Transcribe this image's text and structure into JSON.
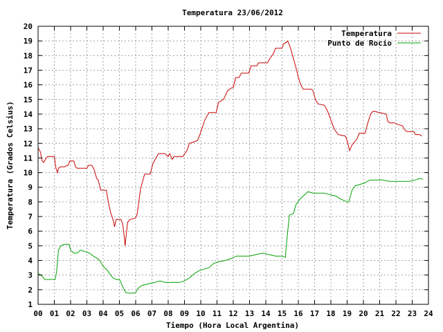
{
  "chart_data": {
    "type": "line",
    "title": "Temperatura 23/06/2012",
    "xlabel": "Tiempo (Hora Local Argentina)",
    "ylabel": "Temperatura (Grados Celsius)",
    "xlim": [
      0,
      24
    ],
    "ylim": [
      1,
      20
    ],
    "x_ticks": [
      "00",
      "01",
      "02",
      "03",
      "04",
      "05",
      "06",
      "07",
      "08",
      "09",
      "10",
      "11",
      "12",
      "13",
      "14",
      "15",
      "16",
      "17",
      "18",
      "19",
      "20",
      "21",
      "22",
      "23",
      "24"
    ],
    "y_ticks": [
      1,
      2,
      3,
      4,
      5,
      6,
      7,
      8,
      9,
      10,
      11,
      12,
      13,
      14,
      15,
      16,
      17,
      18,
      19,
      20
    ],
    "grid": true,
    "legend_position": "top-right",
    "series": [
      {
        "name": "Temperatura",
        "color": "#cc0000",
        "points": [
          [
            0.0,
            11.7
          ],
          [
            0.15,
            11.4
          ],
          [
            0.25,
            10.8
          ],
          [
            0.35,
            10.7
          ],
          [
            0.5,
            11.0
          ],
          [
            0.6,
            11.1
          ],
          [
            0.8,
            11.1
          ],
          [
            1.0,
            11.1
          ],
          [
            1.1,
            10.3
          ],
          [
            1.2,
            10.0
          ],
          [
            1.25,
            10.3
          ],
          [
            1.4,
            10.4
          ],
          [
            1.6,
            10.4
          ],
          [
            1.85,
            10.5
          ],
          [
            1.95,
            10.8
          ],
          [
            2.2,
            10.8
          ],
          [
            2.3,
            10.4
          ],
          [
            2.4,
            10.3
          ],
          [
            2.7,
            10.3
          ],
          [
            3.0,
            10.3
          ],
          [
            3.1,
            10.5
          ],
          [
            3.3,
            10.5
          ],
          [
            3.45,
            10.2
          ],
          [
            3.6,
            9.6
          ],
          [
            3.7,
            9.5
          ],
          [
            3.85,
            8.8
          ],
          [
            4.1,
            8.8
          ],
          [
            4.2,
            8.8
          ],
          [
            4.3,
            8.1
          ],
          [
            4.45,
            7.3
          ],
          [
            4.55,
            7.0
          ],
          [
            4.65,
            6.6
          ],
          [
            4.7,
            6.3
          ],
          [
            4.8,
            6.8
          ],
          [
            5.1,
            6.8
          ],
          [
            5.2,
            6.5
          ],
          [
            5.3,
            5.6
          ],
          [
            5.35,
            5.0
          ],
          [
            5.5,
            6.6
          ],
          [
            5.65,
            6.8
          ],
          [
            6.0,
            6.9
          ],
          [
            6.1,
            7.2
          ],
          [
            6.3,
            8.9
          ],
          [
            6.45,
            9.5
          ],
          [
            6.55,
            9.9
          ],
          [
            6.9,
            9.9
          ],
          [
            7.05,
            10.6
          ],
          [
            7.25,
            11.0
          ],
          [
            7.4,
            11.3
          ],
          [
            7.8,
            11.3
          ],
          [
            8.0,
            11.1
          ],
          [
            8.1,
            11.3
          ],
          [
            8.25,
            10.9
          ],
          [
            8.35,
            11.1
          ],
          [
            8.9,
            11.1
          ],
          [
            9.15,
            11.5
          ],
          [
            9.3,
            12.0
          ],
          [
            9.6,
            12.1
          ],
          [
            9.8,
            12.2
          ],
          [
            9.95,
            12.6
          ],
          [
            10.25,
            13.6
          ],
          [
            10.5,
            14.1
          ],
          [
            10.95,
            14.1
          ],
          [
            11.1,
            14.8
          ],
          [
            11.4,
            15.0
          ],
          [
            11.65,
            15.6
          ],
          [
            11.9,
            15.8
          ],
          [
            12.0,
            15.8
          ],
          [
            12.15,
            16.5
          ],
          [
            12.35,
            16.5
          ],
          [
            12.5,
            16.8
          ],
          [
            12.95,
            16.8
          ],
          [
            13.1,
            17.3
          ],
          [
            13.45,
            17.3
          ],
          [
            13.55,
            17.5
          ],
          [
            14.1,
            17.5
          ],
          [
            14.25,
            17.8
          ],
          [
            14.45,
            18.1
          ],
          [
            14.6,
            18.5
          ],
          [
            15.0,
            18.5
          ],
          [
            15.1,
            18.8
          ],
          [
            15.25,
            18.9
          ],
          [
            15.35,
            19.0
          ],
          [
            15.45,
            18.7
          ],
          [
            15.55,
            18.4
          ],
          [
            15.75,
            17.6
          ],
          [
            15.9,
            17.0
          ],
          [
            16.0,
            16.5
          ],
          [
            16.15,
            16.0
          ],
          [
            16.3,
            15.7
          ],
          [
            16.8,
            15.7
          ],
          [
            16.9,
            15.6
          ],
          [
            17.05,
            15.0
          ],
          [
            17.2,
            14.7
          ],
          [
            17.6,
            14.6
          ],
          [
            17.8,
            14.2
          ],
          [
            18.0,
            13.6
          ],
          [
            18.2,
            13.0
          ],
          [
            18.45,
            12.6
          ],
          [
            18.9,
            12.5
          ],
          [
            19.05,
            12.0
          ],
          [
            19.15,
            11.5
          ],
          [
            19.3,
            11.9
          ],
          [
            19.6,
            12.3
          ],
          [
            19.75,
            12.7
          ],
          [
            20.1,
            12.7
          ],
          [
            20.3,
            13.5
          ],
          [
            20.45,
            14.0
          ],
          [
            20.6,
            14.2
          ],
          [
            21.0,
            14.1
          ],
          [
            21.4,
            14.0
          ],
          [
            21.5,
            13.5
          ],
          [
            21.6,
            13.4
          ],
          [
            21.9,
            13.4
          ],
          [
            22.1,
            13.3
          ],
          [
            22.4,
            13.2
          ],
          [
            22.55,
            12.9
          ],
          [
            22.7,
            12.8
          ],
          [
            23.1,
            12.8
          ],
          [
            23.2,
            12.6
          ],
          [
            23.45,
            12.6
          ],
          [
            23.6,
            12.5
          ]
        ]
      },
      {
        "name": "Punto de Rocío",
        "color": "#00a000",
        "points": [
          [
            0.0,
            3.1
          ],
          [
            0.2,
            3.0
          ],
          [
            0.4,
            2.7
          ],
          [
            0.5,
            2.7
          ],
          [
            0.75,
            2.7
          ],
          [
            1.05,
            2.7
          ],
          [
            1.15,
            3.3
          ],
          [
            1.25,
            4.7
          ],
          [
            1.4,
            5.0
          ],
          [
            1.6,
            5.1
          ],
          [
            1.9,
            5.1
          ],
          [
            2.0,
            4.7
          ],
          [
            2.2,
            4.5
          ],
          [
            2.4,
            4.5
          ],
          [
            2.6,
            4.7
          ],
          [
            2.9,
            4.6
          ],
          [
            3.15,
            4.5
          ],
          [
            3.4,
            4.3
          ],
          [
            3.7,
            4.1
          ],
          [
            3.85,
            3.9
          ],
          [
            4.0,
            3.6
          ],
          [
            4.2,
            3.4
          ],
          [
            4.4,
            3.1
          ],
          [
            4.6,
            2.8
          ],
          [
            4.8,
            2.7
          ],
          [
            5.0,
            2.7
          ],
          [
            5.1,
            2.5
          ],
          [
            5.2,
            2.2
          ],
          [
            5.4,
            1.8
          ],
          [
            5.7,
            1.75
          ],
          [
            6.0,
            1.8
          ],
          [
            6.15,
            2.1
          ],
          [
            6.4,
            2.3
          ],
          [
            6.8,
            2.4
          ],
          [
            7.2,
            2.5
          ],
          [
            7.5,
            2.6
          ],
          [
            7.8,
            2.5
          ],
          [
            8.1,
            2.5
          ],
          [
            8.4,
            2.5
          ],
          [
            8.7,
            2.5
          ],
          [
            9.0,
            2.6
          ],
          [
            9.3,
            2.8
          ],
          [
            9.6,
            3.1
          ],
          [
            9.9,
            3.3
          ],
          [
            10.2,
            3.4
          ],
          [
            10.5,
            3.5
          ],
          [
            10.8,
            3.8
          ],
          [
            11.1,
            3.9
          ],
          [
            11.5,
            4.0
          ],
          [
            11.8,
            4.1
          ],
          [
            12.2,
            4.3
          ],
          [
            12.6,
            4.3
          ],
          [
            13.0,
            4.3
          ],
          [
            13.4,
            4.4
          ],
          [
            13.8,
            4.5
          ],
          [
            14.2,
            4.4
          ],
          [
            14.6,
            4.3
          ],
          [
            15.0,
            4.3
          ],
          [
            15.2,
            4.2
          ],
          [
            15.3,
            5.5
          ],
          [
            15.45,
            7.1
          ],
          [
            15.7,
            7.2
          ],
          [
            15.85,
            7.8
          ],
          [
            16.1,
            8.2
          ],
          [
            16.4,
            8.5
          ],
          [
            16.6,
            8.7
          ],
          [
            16.9,
            8.6
          ],
          [
            17.3,
            8.6
          ],
          [
            17.6,
            8.6
          ],
          [
            17.9,
            8.5
          ],
          [
            18.3,
            8.4
          ],
          [
            18.6,
            8.2
          ],
          [
            19.0,
            8.0
          ],
          [
            19.1,
            8.0
          ],
          [
            19.3,
            8.8
          ],
          [
            19.5,
            9.1
          ],
          [
            19.8,
            9.2
          ],
          [
            20.1,
            9.3
          ],
          [
            20.4,
            9.5
          ],
          [
            20.8,
            9.5
          ],
          [
            21.2,
            9.5
          ],
          [
            21.6,
            9.4
          ],
          [
            22.0,
            9.4
          ],
          [
            22.4,
            9.4
          ],
          [
            22.8,
            9.4
          ],
          [
            23.2,
            9.5
          ],
          [
            23.45,
            9.6
          ],
          [
            23.65,
            9.55
          ]
        ]
      }
    ]
  }
}
